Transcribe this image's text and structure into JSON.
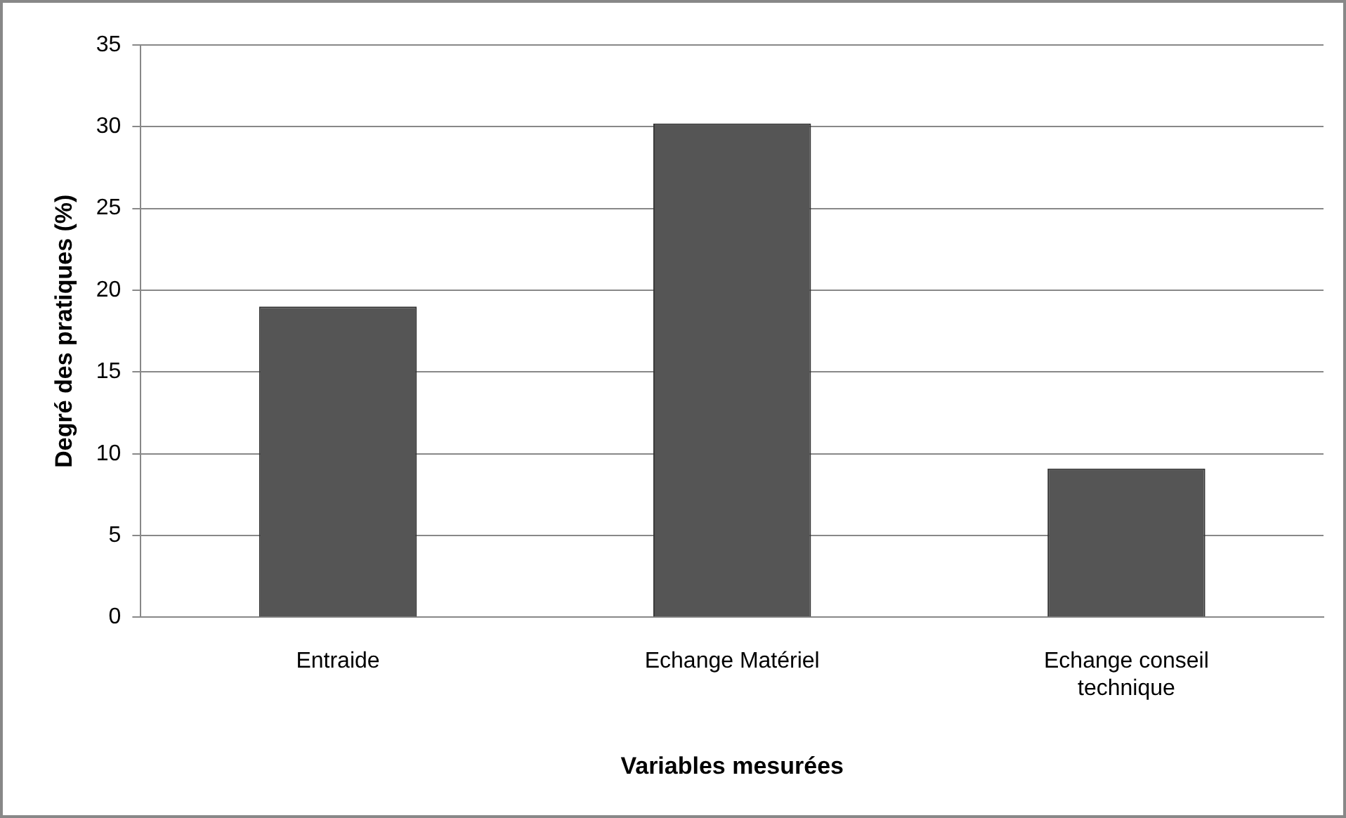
{
  "chart_data": {
    "type": "bar",
    "xlabel": "Variables mesurées",
    "ylabel": "Degré des pratiques (%)",
    "categories": [
      "Entraide",
      "Echange Matériel",
      "Echange conseil technique"
    ],
    "values": [
      19,
      30.2,
      9.1
    ],
    "color": "#555555",
    "ylim": [
      0,
      35
    ],
    "yticks": [
      0,
      5,
      10,
      15,
      20,
      25,
      30,
      35
    ],
    "grid": "y",
    "legend": false
  }
}
